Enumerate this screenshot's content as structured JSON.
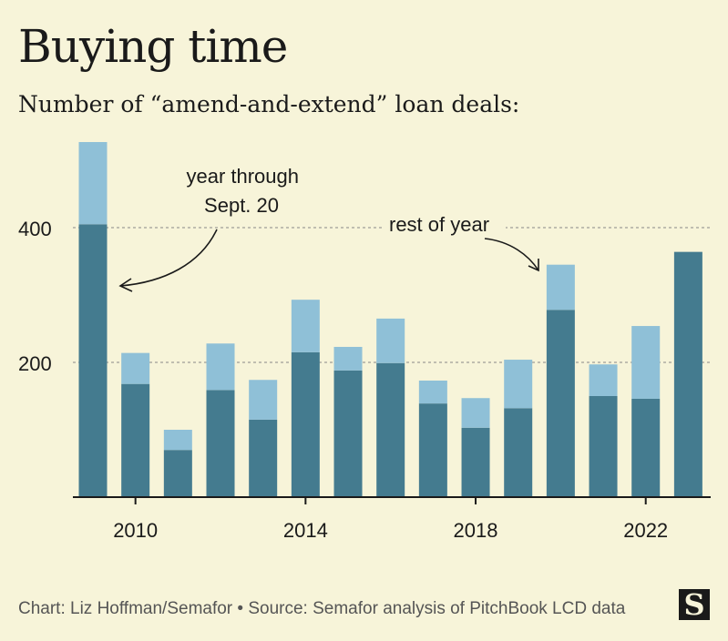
{
  "title": "Buying time",
  "subtitle": "Number of “amend-and-extend” loan deals:",
  "footer": "Chart: Liz Hoffman/Semafor • Source: Semafor analysis of PitchBook LCD data",
  "logo": "S",
  "chart_data": {
    "type": "bar",
    "stacked": true,
    "categories": [
      2009,
      2010,
      2011,
      2012,
      2013,
      2014,
      2015,
      2016,
      2017,
      2018,
      2019,
      2020,
      2021,
      2022,
      2023
    ],
    "series": [
      {
        "name": "year through Sept. 20",
        "color": "#447b8f",
        "values": [
          405,
          168,
          70,
          159,
          115,
          215,
          188,
          199,
          139,
          103,
          132,
          278,
          150,
          146,
          364
        ]
      },
      {
        "name": "rest of year",
        "color": "#8fc0d7",
        "values": [
          122,
          46,
          30,
          69,
          59,
          78,
          35,
          66,
          34,
          44,
          72,
          67,
          47,
          108,
          0
        ]
      }
    ],
    "ylim": [
      0,
      540
    ],
    "yticks": [
      200,
      400
    ],
    "xticks": [
      2010,
      2014,
      2018,
      2022
    ],
    "annotations": {
      "through": [
        "year through",
        "Sept. 20"
      ],
      "rest": "rest of year"
    }
  }
}
